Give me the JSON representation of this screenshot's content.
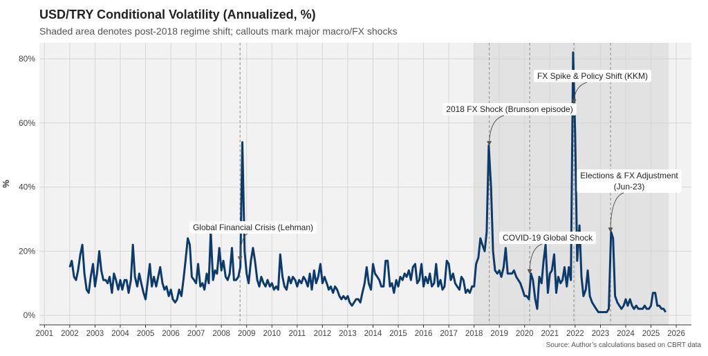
{
  "chart_data": {
    "type": "line",
    "title": "USD/TRY Conditional Volatility (Annualized, %)",
    "subtitle": "Shaded area denotes post-2018 regime shift; callouts mark major macro/FX shocks",
    "y_label": "%",
    "source": "Source: Author’s calculations based on CBRT data",
    "x": [
      2002,
      2002.08,
      2002.17,
      2002.25,
      2002.33,
      2002.42,
      2002.5,
      2002.58,
      2002.67,
      2002.75,
      2002.83,
      2002.92,
      2003,
      2003.08,
      2003.17,
      2003.25,
      2003.33,
      2003.42,
      2003.5,
      2003.58,
      2003.67,
      2003.75,
      2003.83,
      2003.92,
      2004,
      2004.08,
      2004.17,
      2004.25,
      2004.33,
      2004.42,
      2004.5,
      2004.58,
      2004.67,
      2004.75,
      2004.83,
      2004.92,
      2005,
      2005.08,
      2005.17,
      2005.25,
      2005.33,
      2005.42,
      2005.5,
      2005.58,
      2005.67,
      2005.75,
      2005.83,
      2005.92,
      2006,
      2006.08,
      2006.17,
      2006.25,
      2006.33,
      2006.42,
      2006.5,
      2006.58,
      2006.67,
      2006.75,
      2006.83,
      2006.92,
      2007,
      2007.08,
      2007.17,
      2007.25,
      2007.33,
      2007.42,
      2007.5,
      2007.58,
      2007.67,
      2007.75,
      2007.83,
      2007.92,
      2008,
      2008.08,
      2008.17,
      2008.25,
      2008.33,
      2008.42,
      2008.5,
      2008.58,
      2008.67,
      2008.75,
      2008.83,
      2008.92,
      2009,
      2009.08,
      2009.17,
      2009.25,
      2009.33,
      2009.42,
      2009.5,
      2009.58,
      2009.67,
      2009.75,
      2009.83,
      2009.92,
      2010,
      2010.08,
      2010.17,
      2010.25,
      2010.33,
      2010.42,
      2010.5,
      2010.58,
      2010.67,
      2010.75,
      2010.83,
      2010.92,
      2011,
      2011.08,
      2011.17,
      2011.25,
      2011.33,
      2011.42,
      2011.5,
      2011.58,
      2011.67,
      2011.75,
      2011.83,
      2011.92,
      2012,
      2012.08,
      2012.17,
      2012.25,
      2012.33,
      2012.42,
      2012.5,
      2012.58,
      2012.67,
      2012.75,
      2012.83,
      2012.92,
      2013,
      2013.08,
      2013.17,
      2013.25,
      2013.33,
      2013.42,
      2013.5,
      2013.58,
      2013.67,
      2013.75,
      2013.83,
      2013.92,
      2014,
      2014.08,
      2014.17,
      2014.25,
      2014.33,
      2014.42,
      2014.5,
      2014.58,
      2014.67,
      2014.75,
      2014.83,
      2014.92,
      2015,
      2015.08,
      2015.17,
      2015.25,
      2015.33,
      2015.42,
      2015.5,
      2015.58,
      2015.67,
      2015.75,
      2015.83,
      2015.92,
      2016,
      2016.08,
      2016.17,
      2016.25,
      2016.33,
      2016.42,
      2016.5,
      2016.58,
      2016.67,
      2016.75,
      2016.83,
      2016.92,
      2017,
      2017.08,
      2017.17,
      2017.25,
      2017.33,
      2017.42,
      2017.5,
      2017.58,
      2017.67,
      2017.75,
      2017.83,
      2017.92,
      2018,
      2018.08,
      2018.17,
      2018.25,
      2018.33,
      2018.42,
      2018.5,
      2018.58,
      2018.67,
      2018.75,
      2018.83,
      2018.92,
      2019,
      2019.08,
      2019.17,
      2019.25,
      2019.33,
      2019.42,
      2019.5,
      2019.58,
      2019.67,
      2019.75,
      2019.83,
      2019.92,
      2020,
      2020.08,
      2020.17,
      2020.25,
      2020.33,
      2020.42,
      2020.5,
      2020.58,
      2020.67,
      2020.75,
      2020.83,
      2020.92,
      2021,
      2021.08,
      2021.17,
      2021.25,
      2021.33,
      2021.42,
      2021.5,
      2021.58,
      2021.67,
      2021.75,
      2021.83,
      2021.92,
      2022,
      2022.08,
      2022.17,
      2022.25,
      2022.33,
      2022.42,
      2022.5,
      2022.58,
      2022.67,
      2022.75,
      2022.83,
      2022.92,
      2023,
      2023.08,
      2023.17,
      2023.25,
      2023.33,
      2023.42,
      2023.5,
      2023.58,
      2023.67,
      2023.75,
      2023.83,
      2023.92,
      2024,
      2024.08,
      2024.17,
      2024.25,
      2024.33,
      2024.42,
      2024.5,
      2024.58,
      2024.67,
      2024.75,
      2024.83,
      2024.92,
      2025,
      2025.08,
      2025.17,
      2025.25,
      2025.33,
      2025.42,
      2025.5,
      2025.58
    ],
    "series": [
      {
        "color": "#0b3a6b",
        "values": [
          15,
          17,
          12,
          11,
          14,
          19,
          22,
          13,
          8,
          7,
          12,
          16,
          9,
          13,
          20,
          14,
          11,
          11,
          10,
          12,
          7,
          13,
          11,
          8,
          11,
          8,
          11,
          11,
          7,
          11,
          22,
          12,
          9,
          13,
          10,
          7,
          5,
          10,
          16,
          9,
          12,
          9,
          12,
          15,
          10,
          8,
          9,
          6,
          8,
          5,
          4,
          5,
          8,
          6,
          11,
          17,
          24,
          22,
          12,
          11,
          10,
          16,
          9,
          10,
          8,
          13,
          10,
          26,
          11,
          14,
          13,
          21,
          14,
          17,
          12,
          11,
          13,
          21,
          11,
          11,
          12,
          15,
          54,
          20,
          13,
          10,
          17,
          21,
          17,
          11,
          9,
          12,
          10,
          9,
          11,
          9,
          10,
          8,
          9,
          8,
          19,
          12,
          9,
          8,
          12,
          10,
          12,
          11,
          9,
          11,
          10,
          12,
          11,
          9,
          13,
          8,
          14,
          10,
          12,
          16,
          10,
          12,
          10,
          8,
          9,
          7,
          9,
          8,
          6,
          5,
          6,
          5,
          6,
          4,
          3,
          4,
          5,
          5,
          4,
          7,
          10,
          15,
          10,
          8,
          16,
          13,
          12,
          11,
          9,
          9,
          17,
          17,
          9,
          10,
          7,
          11,
          9,
          12,
          11,
          13,
          12,
          14,
          11,
          15,
          16,
          10,
          11,
          16,
          9,
          12,
          10,
          13,
          9,
          10,
          16,
          9,
          11,
          8,
          9,
          17,
          16,
          11,
          13,
          10,
          9,
          8,
          12,
          11,
          7,
          8,
          7,
          9,
          9,
          16,
          18,
          24,
          22,
          20,
          26,
          53,
          40,
          20,
          14,
          13,
          14,
          12,
          15,
          21,
          13,
          13,
          13,
          14,
          12,
          11,
          10,
          8,
          6,
          6,
          5,
          13,
          11,
          5,
          2,
          12,
          10,
          17,
          22,
          7,
          13,
          14,
          19,
          7,
          12,
          10,
          11,
          15,
          9,
          15,
          11,
          82,
          56,
          17,
          28,
          12,
          6,
          8,
          14,
          6,
          4,
          3,
          2,
          1,
          1,
          1,
          1,
          1,
          2,
          26,
          24,
          6,
          4,
          3,
          2,
          3,
          5,
          3,
          5,
          3,
          2,
          3,
          2,
          2,
          2,
          3,
          2,
          2,
          3,
          7,
          7,
          3,
          3,
          2,
          2,
          1
        ]
      }
    ],
    "shade": [
      2018,
      2025.7
    ],
    "annotations": [
      {
        "lines": [
          "Global Financial Crisis (Lehman)"
        ],
        "x": 2008.74,
        "y": 17
      },
      {
        "lines": [
          "2018 FX Shock (Brunson episode)"
        ],
        "x": 2018.6,
        "y": 53
      },
      {
        "lines": [
          "COVID-19 Global Shock"
        ],
        "x": 2020.2,
        "y": 13
      },
      {
        "lines": [
          "FX Spike & Policy Shift (KKM)"
        ],
        "x": 2021.95,
        "y": 66
      },
      {
        "lines": [
          "Elections & FX Adjustment",
          "(Jun-23)"
        ],
        "x": 2023.4,
        "y": 26
      }
    ],
    "xlim": [
      2000.8,
      2026.6
    ],
    "ylim": [
      -3,
      85
    ],
    "xticks": [
      2001,
      2002,
      2003,
      2004,
      2005,
      2006,
      2007,
      2008,
      2009,
      2010,
      2011,
      2012,
      2013,
      2014,
      2015,
      2016,
      2017,
      2018,
      2019,
      2020,
      2021,
      2022,
      2023,
      2024,
      2025,
      2026
    ],
    "yticks": [
      {
        "value": 0,
        "label": "0%"
      },
      {
        "value": 20,
        "label": "20%"
      },
      {
        "value": 40,
        "label": "40%"
      },
      {
        "value": 60,
        "label": "60%"
      },
      {
        "value": 80,
        "label": "80%"
      }
    ],
    "grid": true
  }
}
